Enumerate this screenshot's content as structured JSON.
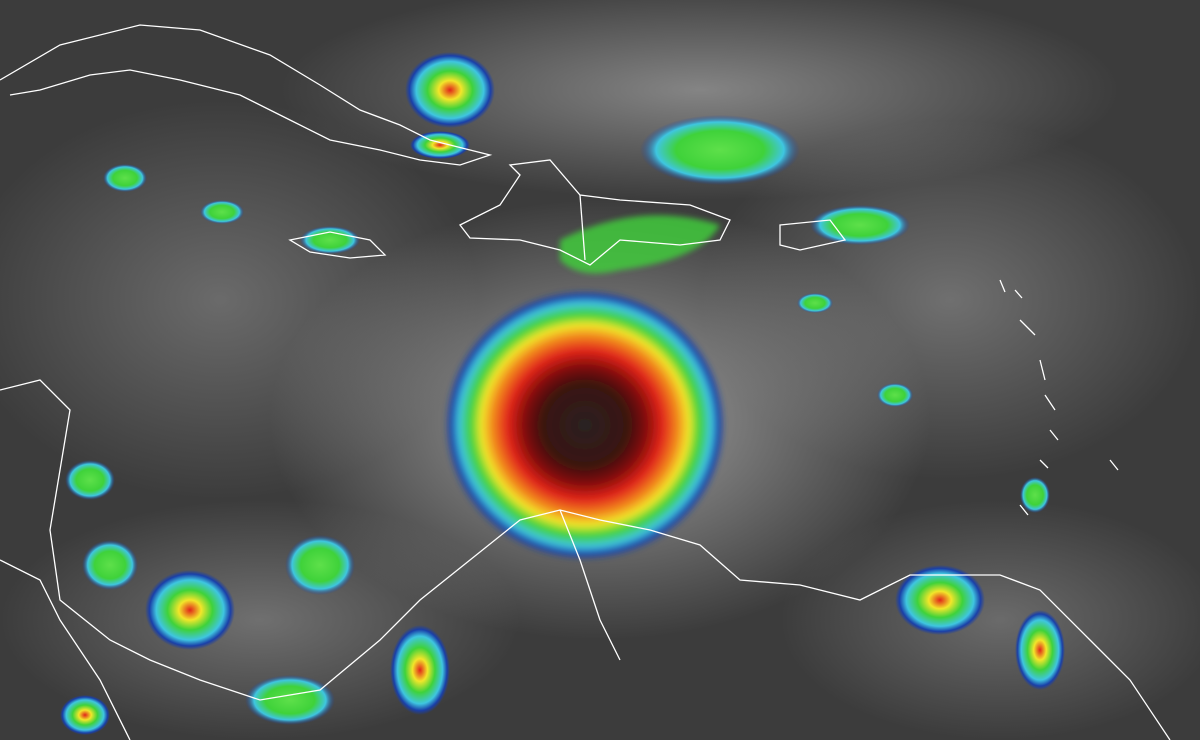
{
  "image": {
    "kind": "infrared satellite imagery with coastline outlines",
    "colors": {
      "background_cloud_free": "#3c3c3c",
      "cirrus_gray": "#9a9a9a",
      "light_cloud": "#d8d8d8",
      "cold_blue": "#1a3fa8",
      "cyan": "#3fc6e0",
      "green": "#3fd23a",
      "yellow": "#f2e62a",
      "orange": "#f28a1e",
      "red": "#e0241a",
      "dark_red": "#5a0a08",
      "eye_core": "#2a2222",
      "coastline": "#ffffff"
    }
  }
}
